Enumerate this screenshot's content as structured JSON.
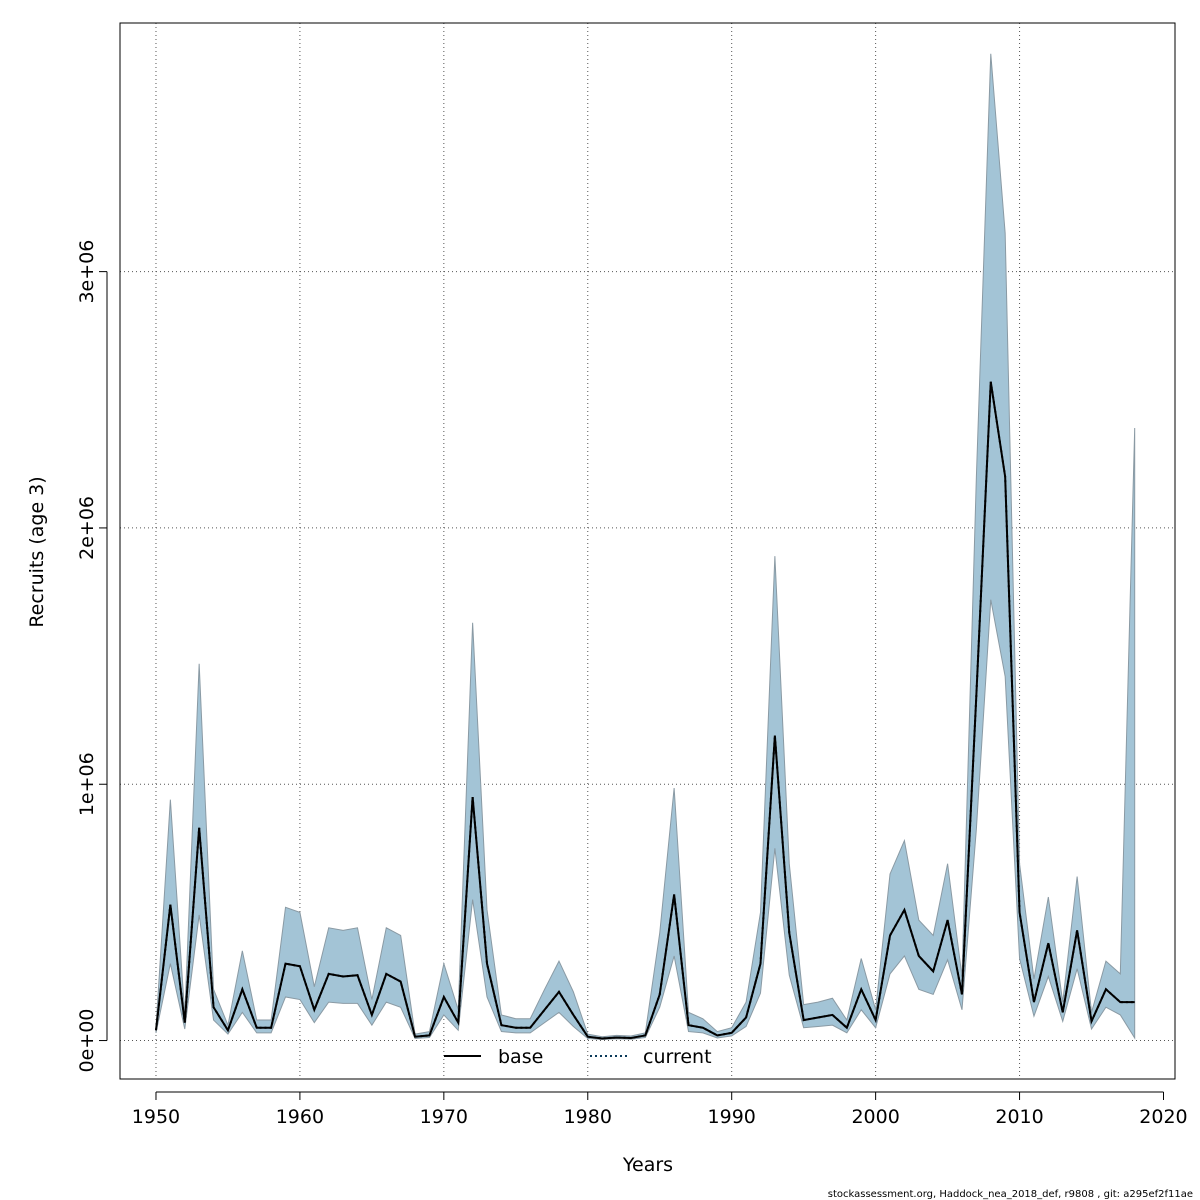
{
  "footer": "stockassessment.org, Haddock_nea_2018_def, r9808 , git: a295ef2f11ae",
  "colors": {
    "band_fill": "#a3c4d6",
    "band_stroke": "#8a9aa4",
    "grid": "#555555",
    "base_line": "#000000",
    "current_line": "#0a3a5a"
  },
  "chart_data": {
    "type": "area",
    "xlabel": "Years",
    "ylabel": "Recruits (age 3)",
    "xlim": [
      1947.5,
      2020.8
    ],
    "ylim": [
      -150000,
      3970000
    ],
    "xticks": [
      1950,
      1960,
      1970,
      1980,
      1990,
      2000,
      2010,
      2020
    ],
    "xtick_labels": [
      "1950",
      "1960",
      "1970",
      "1980",
      "1990",
      "2000",
      "2010",
      "2020"
    ],
    "yticks": [
      0,
      1000000,
      2000000,
      3000000
    ],
    "ytick_labels": [
      "0e+00",
      "1e+06",
      "2e+06",
      "3e+06"
    ],
    "grid": true,
    "legend_position": "bottom",
    "legend": [
      {
        "label": "base",
        "style": "solid"
      },
      {
        "label": "current",
        "style": "dotted"
      }
    ],
    "x": [
      1950,
      1951,
      1952,
      1953,
      1954,
      1955,
      1956,
      1957,
      1958,
      1959,
      1960,
      1961,
      1962,
      1963,
      1964,
      1965,
      1966,
      1967,
      1968,
      1969,
      1970,
      1971,
      1972,
      1973,
      1974,
      1975,
      1976,
      1977,
      1978,
      1979,
      1980,
      1981,
      1982,
      1983,
      1984,
      1985,
      1986,
      1987,
      1988,
      1989,
      1990,
      1991,
      1992,
      1993,
      1994,
      1995,
      1996,
      1997,
      1998,
      1999,
      2000,
      2001,
      2002,
      2003,
      2004,
      2005,
      2006,
      2007,
      2008,
      2009,
      2010,
      2011,
      2012,
      2013,
      2014,
      2015,
      2016,
      2017,
      2018
    ],
    "series": [
      {
        "name": "base",
        "values": [
          40000,
          530000,
          70000,
          830000,
          130000,
          40000,
          200000,
          50000,
          50000,
          300000,
          290000,
          120000,
          260000,
          250000,
          255000,
          100000,
          260000,
          230000,
          15000,
          20000,
          170000,
          70000,
          950000,
          300000,
          60000,
          50000,
          50000,
          120000,
          190000,
          100000,
          15000,
          8000,
          12000,
          10000,
          20000,
          180000,
          570000,
          60000,
          50000,
          20000,
          30000,
          90000,
          300000,
          1190000,
          420000,
          80000,
          90000,
          100000,
          50000,
          200000,
          80000,
          410000,
          510000,
          330000,
          270000,
          470000,
          180000,
          1350000,
          2570000,
          2200000,
          500000,
          150000,
          380000,
          110000,
          430000,
          75000,
          200000,
          150000,
          150000
        ]
      },
      {
        "name": "current",
        "values": [
          40000,
          530000,
          70000,
          830000,
          130000,
          40000,
          200000,
          50000,
          50000,
          300000,
          290000,
          120000,
          260000,
          250000,
          255000,
          100000,
          260000,
          230000,
          15000,
          20000,
          170000,
          70000,
          950000,
          300000,
          60000,
          50000,
          50000,
          120000,
          190000,
          100000,
          15000,
          8000,
          12000,
          10000,
          20000,
          180000,
          570000,
          60000,
          50000,
          20000,
          30000,
          90000,
          300000,
          1190000,
          420000,
          80000,
          90000,
          100000,
          50000,
          200000,
          80000,
          410000,
          510000,
          330000,
          270000,
          470000,
          180000,
          1350000,
          2570000,
          2200000,
          500000,
          150000,
          380000,
          110000,
          430000,
          75000,
          200000,
          150000,
          150000
        ]
      }
    ],
    "band": {
      "upper": [
        50000,
        940000,
        100000,
        1470000,
        200000,
        60000,
        350000,
        80000,
        80000,
        520000,
        500000,
        210000,
        440000,
        430000,
        440000,
        160000,
        440000,
        410000,
        25000,
        35000,
        300000,
        120000,
        1630000,
        510000,
        100000,
        85000,
        85000,
        200000,
        310000,
        190000,
        25000,
        15000,
        20000,
        18000,
        30000,
        420000,
        985000,
        110000,
        85000,
        35000,
        50000,
        150000,
        500000,
        1890000,
        690000,
        140000,
        150000,
        165000,
        80000,
        320000,
        120000,
        650000,
        780000,
        470000,
        410000,
        690000,
        250000,
        2200000,
        3850000,
        3150000,
        690000,
        240000,
        560000,
        150000,
        640000,
        110000,
        310000,
        260000,
        2390000
      ],
      "lower": [
        30000,
        300000,
        45000,
        490000,
        80000,
        25000,
        110000,
        30000,
        30000,
        170000,
        160000,
        70000,
        150000,
        145000,
        145000,
        60000,
        150000,
        130000,
        8000,
        12000,
        100000,
        40000,
        550000,
        170000,
        35000,
        30000,
        30000,
        70000,
        110000,
        55000,
        8000,
        4000,
        7000,
        5000,
        12000,
        130000,
        330000,
        35000,
        30000,
        10000,
        18000,
        55000,
        185000,
        750000,
        255000,
        50000,
        55000,
        60000,
        30000,
        120000,
        50000,
        260000,
        330000,
        200000,
        180000,
        315000,
        120000,
        825000,
        1720000,
        1420000,
        320000,
        95000,
        250000,
        75000,
        280000,
        45000,
        130000,
        100000,
        10000
      ]
    }
  }
}
